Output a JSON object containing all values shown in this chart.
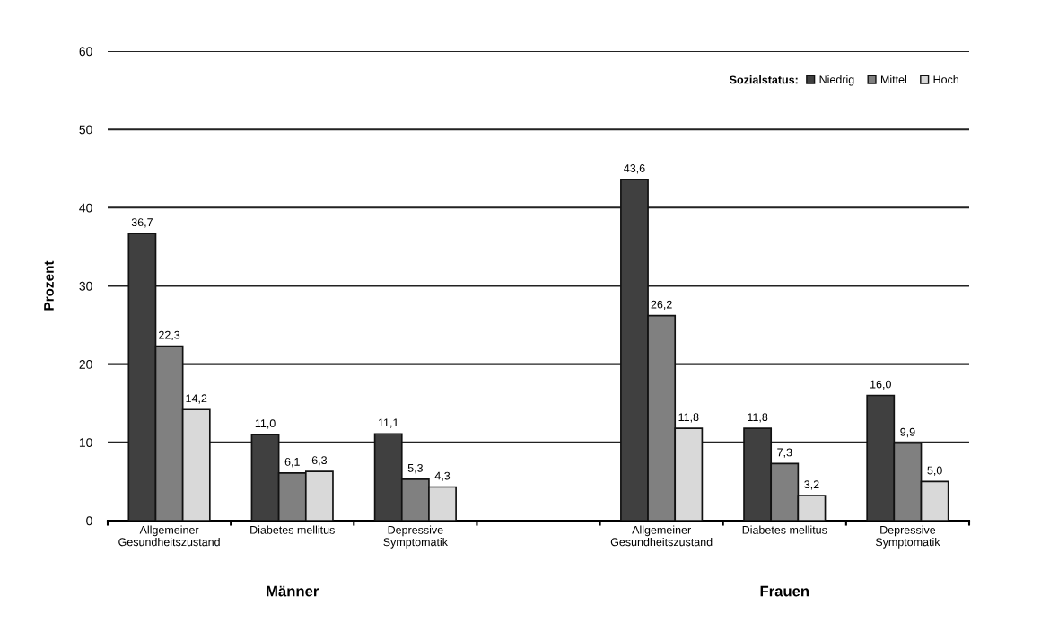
{
  "chart_data": {
    "type": "bar",
    "ylabel": "Prozent",
    "legend_title": "Sozialstatus:",
    "categories": [
      "Allgemeiner\nGesundheitszustand",
      "Diabetes mellitus",
      "Depressive\nSymptomatik",
      null,
      "Allgemeiner\nGesundheitszustand",
      "Diabetes mellitus",
      "Depressive\nSymptomatik"
    ],
    "series": [
      {
        "name": "Niedrig",
        "color": "#404040",
        "values": [
          36.7,
          11.0,
          11.1,
          null,
          43.6,
          11.8,
          16.0
        ],
        "value_labels": [
          "36,7",
          "11,0",
          "11,1",
          null,
          "43,6",
          "11,8",
          "16,0"
        ]
      },
      {
        "name": "Mittel",
        "color": "#808080",
        "values": [
          22.3,
          6.1,
          5.3,
          null,
          26.2,
          7.3,
          9.9
        ],
        "value_labels": [
          "22,3",
          "6,1",
          "5,3",
          null,
          "26,2",
          "7,3",
          "9,9"
        ]
      },
      {
        "name": "Hoch",
        "color": "#d9d9d9",
        "values": [
          14.2,
          6.3,
          4.3,
          null,
          11.8,
          3.2,
          5.0
        ],
        "value_labels": [
          "14,2",
          "6,3",
          "4,3",
          null,
          "11,8",
          "3,2",
          "5,0"
        ]
      }
    ],
    "ylim": [
      0,
      60
    ],
    "yticks": [
      0,
      10,
      20,
      30,
      40,
      50,
      60
    ],
    "grid": "y",
    "legend": "top right",
    "annotations": [
      "Männer",
      "Frauen"
    ]
  }
}
